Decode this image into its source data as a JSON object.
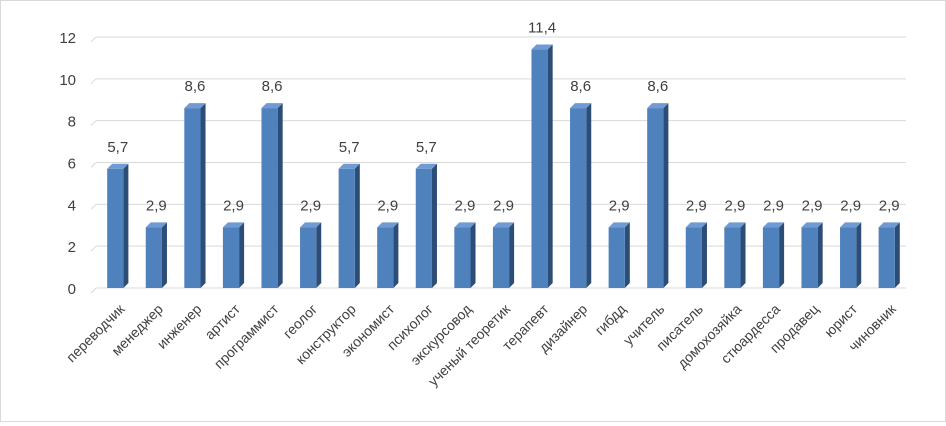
{
  "chart_data": {
    "type": "bar",
    "title": "",
    "xlabel": "",
    "ylabel": "",
    "ylim": [
      0,
      12
    ],
    "yticks": [
      0,
      2,
      4,
      6,
      8,
      10,
      12
    ],
    "ytick_labels": [
      "0",
      "2",
      "4",
      "6",
      "8",
      "10",
      "12"
    ],
    "grid": true,
    "legend": "none",
    "bar_color": "#4f81bd",
    "categories": [
      "переводчик",
      "менеджер",
      "инженер",
      "артист",
      "программист",
      "геолог",
      "конструктор",
      "экономист",
      "психолог",
      "экскурсовод",
      "ученый теоретик",
      "терапевт",
      "дизайнер",
      "гибдд",
      "учитель",
      "писатель",
      "домохозяйка",
      "стюардесса",
      "продавец",
      "юрист",
      "чиновник"
    ],
    "values": [
      5.7,
      2.9,
      8.6,
      2.9,
      8.6,
      2.9,
      5.7,
      2.9,
      5.7,
      2.9,
      2.9,
      11.4,
      8.6,
      2.9,
      8.6,
      2.9,
      2.9,
      2.9,
      2.9,
      2.9,
      2.9
    ],
    "value_labels": [
      "5,7",
      "2,9",
      "8,6",
      "2,9",
      "8,6",
      "2,9",
      "5,7",
      "2,9",
      "5,7",
      "2,9",
      "2,9",
      "11,4",
      "8,6",
      "2,9",
      "8,6",
      "2,9",
      "2,9",
      "2,9",
      "2,9",
      "2,9",
      "2,9"
    ]
  }
}
